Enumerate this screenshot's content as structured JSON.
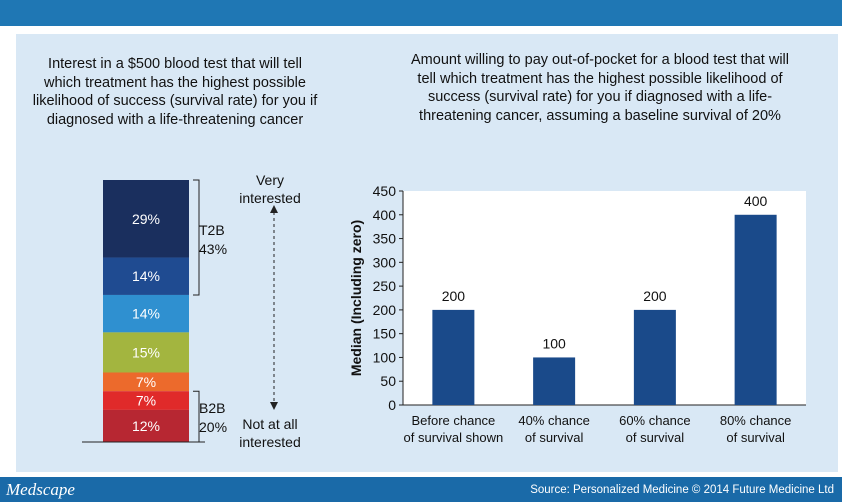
{
  "colors": {
    "topbar": "#1f77b4",
    "footer": "#1a6aa8",
    "panel": "#d9e8f5",
    "bar": "#1a4a8a"
  },
  "footer": {
    "brand": "Medscape",
    "source": "Source: Personalized Medicine © 2014 Future Medicine Ltd"
  },
  "chart_data": [
    {
      "type": "bar",
      "subtype": "stacked-100",
      "title": "Interest in a $500 blood test that will tell which treatment has the highest possible likelihood of success (survival rate) for you if diagnosed with a life-threatening cancer",
      "segments": [
        {
          "label": "29%",
          "value": 29,
          "color": "#1a2f5e"
        },
        {
          "label": "14%",
          "value": 14,
          "color": "#1f4b91"
        },
        {
          "label": "14%",
          "value": 14,
          "color": "#2f90d0"
        },
        {
          "label": "15%",
          "value": 15,
          "color": "#a3b53f"
        },
        {
          "label": "7%",
          "value": 7,
          "color": "#ec6a2c"
        },
        {
          "label": "7%",
          "value": 7,
          "color": "#e02a2a"
        },
        {
          "label": "12%",
          "value": 12,
          "color": "#b72732"
        }
      ],
      "groups": [
        {
          "name": "T2B",
          "value": "43%"
        },
        {
          "name": "B2B",
          "value": "20%"
        }
      ],
      "scale": {
        "top": "Very interested",
        "bottom": "Not at all interested"
      }
    },
    {
      "type": "bar",
      "title": "Amount willing to pay out-of-pocket for a blood test that will tell which treatment has the highest possible likelihood of success (survival rate) for you if diagnosed with a life-threatening cancer, assuming a baseline survival of 20%",
      "categories": [
        "Before chance\nof survival shown",
        "40% chance\nof survival",
        "60% chance\nof survival",
        "80% chance\nof survival"
      ],
      "values": [
        200,
        100,
        200,
        400
      ],
      "data_labels": [
        "200",
        "100",
        "200",
        "400"
      ],
      "ylabel": "Median (Including zero)",
      "ylim": [
        0,
        450
      ],
      "yticks": [
        0,
        50,
        100,
        150,
        200,
        250,
        300,
        350,
        400,
        450
      ]
    }
  ]
}
